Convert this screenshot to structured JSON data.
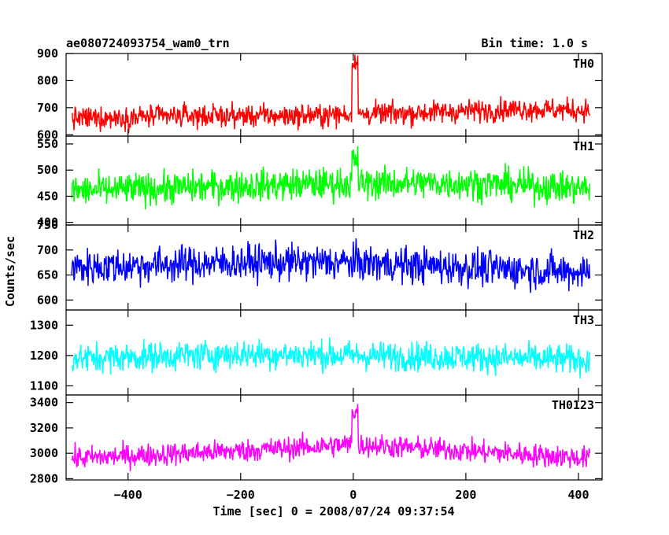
{
  "chart_data": {
    "type": "line",
    "title": "ae080724093754_wam0_trn",
    "bin_time_label": "Bin time: 1.0 s",
    "xlabel": "Time [sec] 0 = 2008/07/24 09:37:54",
    "ylabel": "Counts/sec",
    "xlim": [
      -510,
      442
    ],
    "x_ticks": [
      -400,
      -200,
      0,
      200,
      400
    ],
    "x_tick_labels": [
      "−400",
      "−200",
      "0",
      "200",
      "400"
    ],
    "x_range": [
      -500,
      420
    ],
    "series": [
      {
        "name": "TH0",
        "color": "#ff0000",
        "ylim": [
          595,
          900
        ],
        "y_ticks": [
          600,
          700,
          800,
          900
        ],
        "y_tick_labels": [
          "600",
          "700",
          "800",
          "900"
        ],
        "baseline": [
          [
            -500,
            660
          ],
          [
            -300,
            670
          ],
          [
            -100,
            670
          ],
          [
            100,
            680
          ],
          [
            300,
            695
          ],
          [
            420,
            690
          ]
        ],
        "noise": 30,
        "burst": {
          "start": -2,
          "end": 8,
          "level": 870
        }
      },
      {
        "name": "TH1",
        "color": "#00ff00",
        "ylim": [
          395,
          565
        ],
        "y_ticks": [
          400,
          450,
          500,
          550
        ],
        "y_tick_labels": [
          "400",
          "450",
          "500",
          "550"
        ],
        "baseline": [
          [
            -500,
            460
          ],
          [
            -200,
            470
          ],
          [
            0,
            475
          ],
          [
            200,
            475
          ],
          [
            420,
            465
          ]
        ],
        "noise": 22,
        "burst": {
          "start": -2,
          "end": 8,
          "level": 520
        }
      },
      {
        "name": "TH2",
        "color": "#0000ff",
        "ylim": [
          580,
          750
        ],
        "y_ticks": [
          600,
          650,
          700,
          750
        ],
        "y_tick_labels": [
          "600",
          "650",
          "700",
          "750"
        ],
        "baseline": [
          [
            -500,
            665
          ],
          [
            -200,
            675
          ],
          [
            0,
            675
          ],
          [
            200,
            665
          ],
          [
            420,
            655
          ]
        ],
        "noise": 26,
        "burst": null
      },
      {
        "name": "TH3",
        "color": "#00ffff",
        "ylim": [
          1070,
          1350
        ],
        "y_ticks": [
          1100,
          1200,
          1300
        ],
        "y_tick_labels": [
          "1100",
          "1200",
          "1300"
        ],
        "baseline": [
          [
            -500,
            1190
          ],
          [
            -200,
            1205
          ],
          [
            0,
            1200
          ],
          [
            200,
            1195
          ],
          [
            420,
            1185
          ]
        ],
        "noise": 35,
        "burst": null
      },
      {
        "name": "TH0123",
        "color": "#ff00ff",
        "ylim": [
          2790,
          3460
        ],
        "y_ticks": [
          2800,
          3000,
          3200,
          3400
        ],
        "y_tick_labels": [
          "2800",
          "3000",
          "3200",
          "3400"
        ],
        "baseline": [
          [
            -500,
            2960
          ],
          [
            -200,
            3020
          ],
          [
            0,
            3070
          ],
          [
            200,
            3020
          ],
          [
            420,
            2960
          ]
        ],
        "noise": 65,
        "burst": {
          "start": -2,
          "end": 8,
          "level": 3330
        }
      }
    ]
  }
}
